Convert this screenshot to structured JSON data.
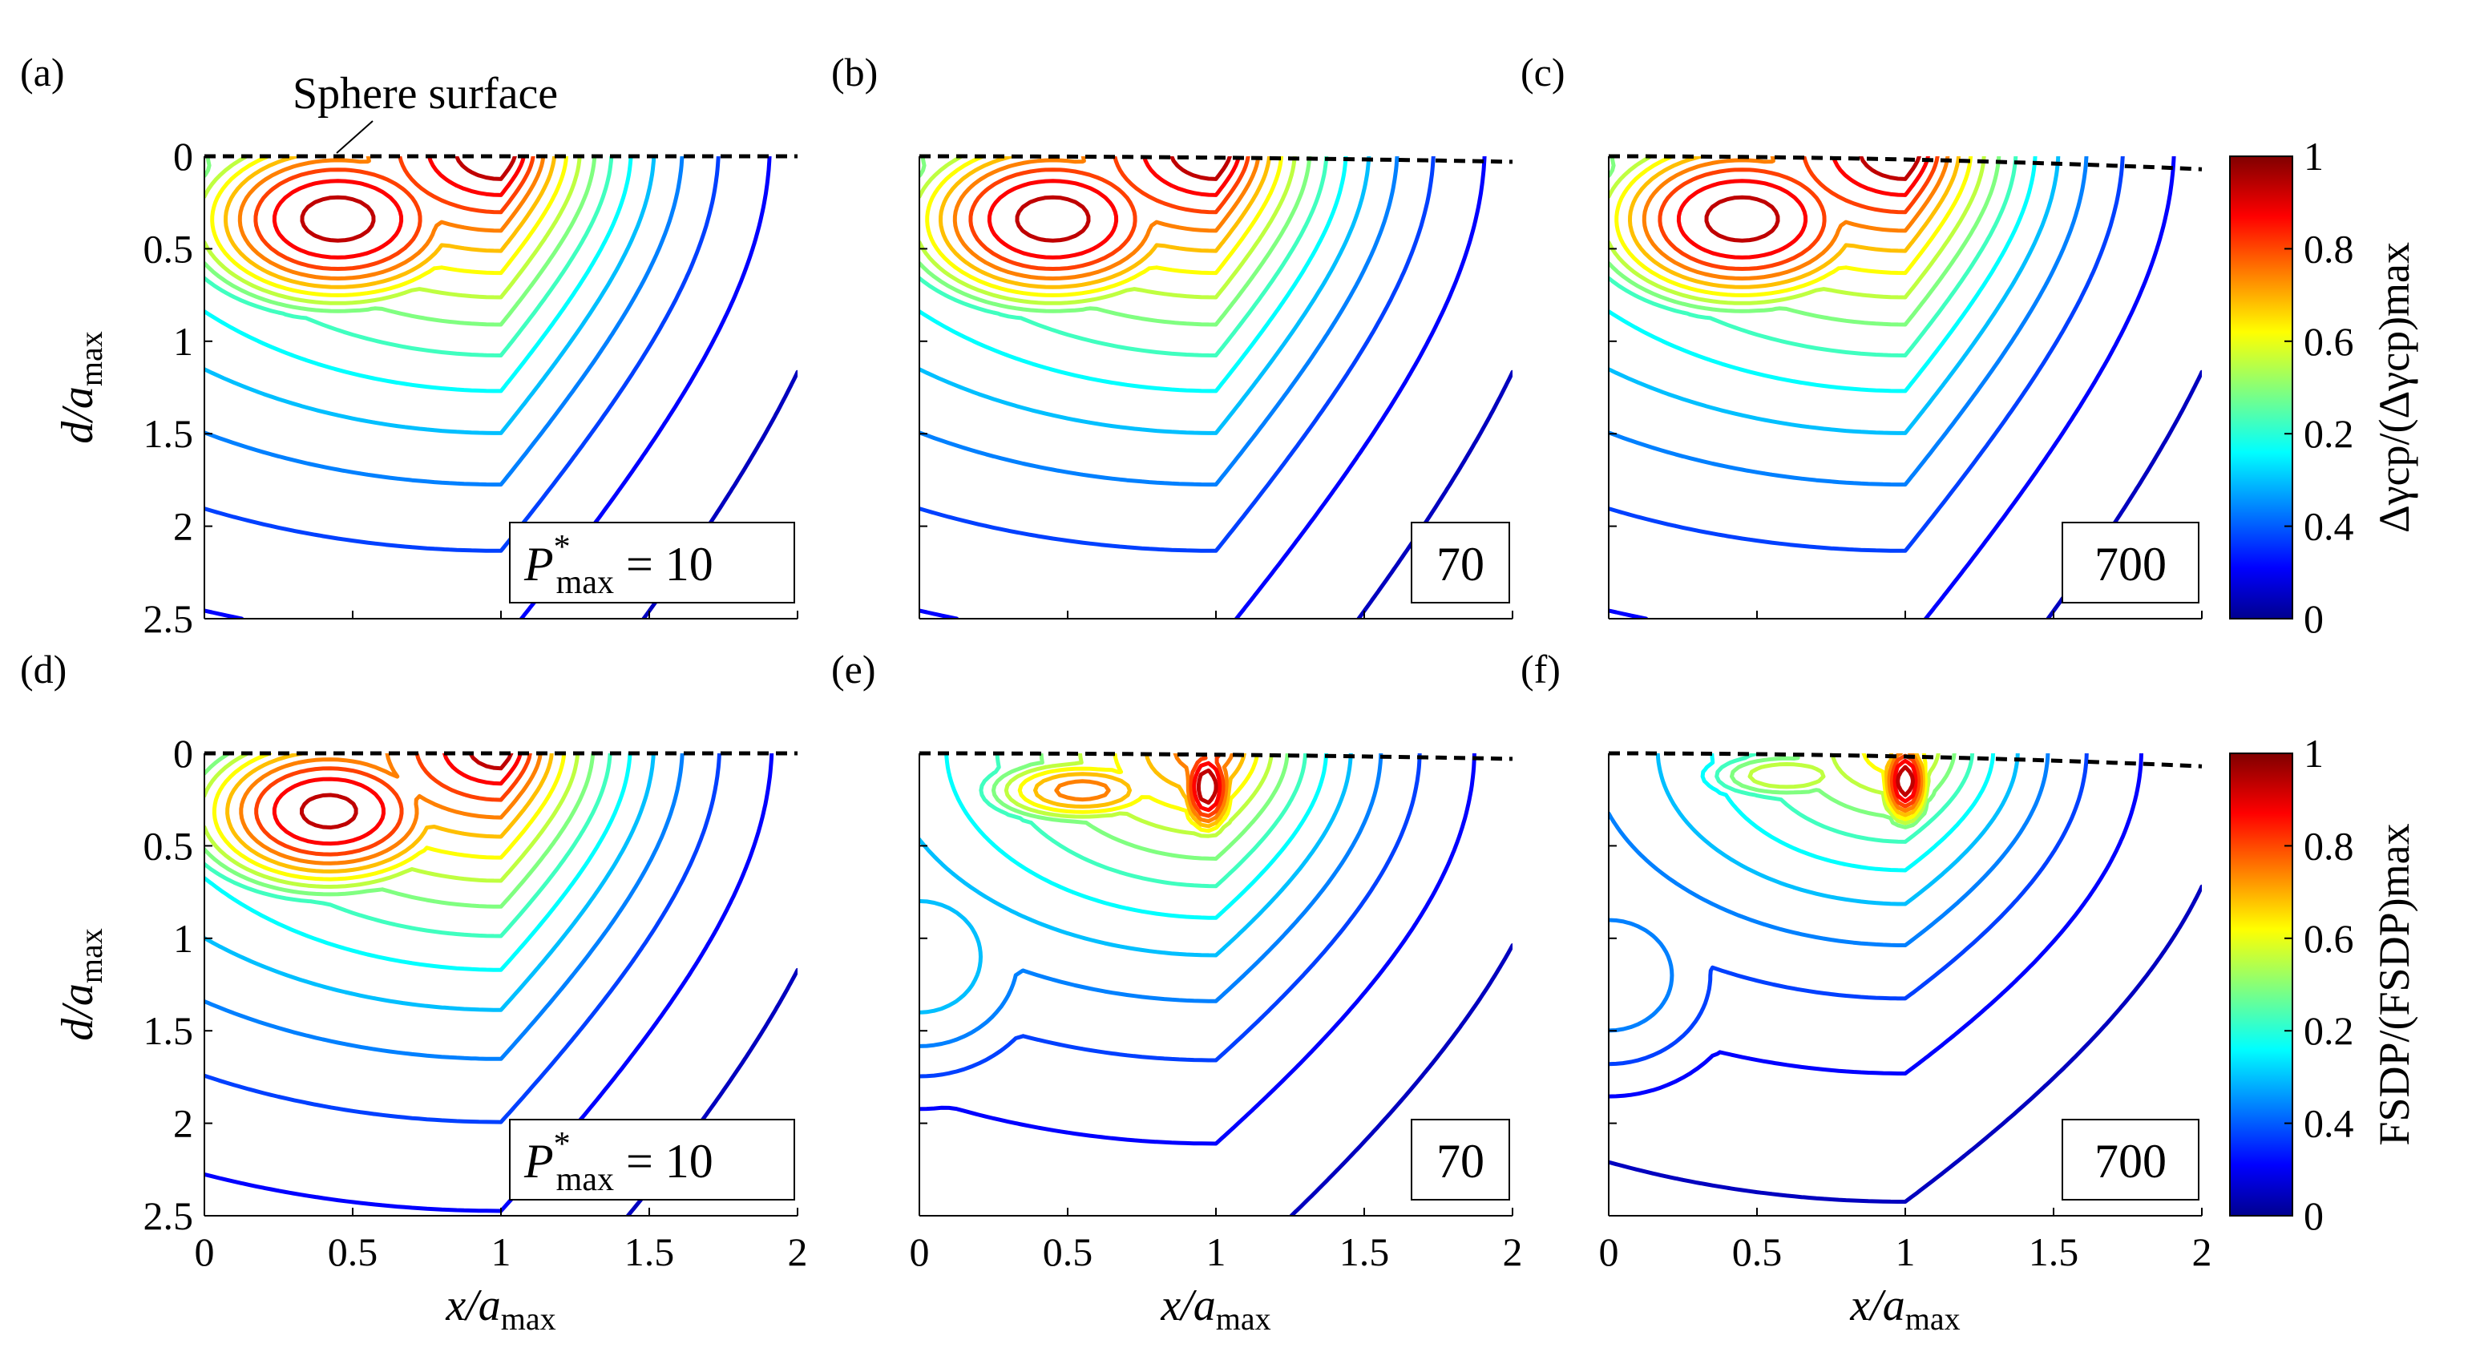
{
  "chart_data": [
    {
      "id": "a",
      "panel_label": "(a)",
      "type": "contour",
      "field": "cp",
      "row": 0,
      "col": 0,
      "box_value": "10",
      "box_prefix": "P",
      "box_sup": "*",
      "box_sub": "max",
      "box_suffix": " = 10",
      "show_prefix": true,
      "annotation": "Sphere surface",
      "xlabel": "",
      "ylabel": "d/a",
      "show_xticks": false,
      "show_yticks": true,
      "levels": 15,
      "surface_sag": 0.0
    },
    {
      "id": "b",
      "panel_label": "(b)",
      "type": "contour",
      "field": "cp",
      "row": 0,
      "col": 1,
      "box_value": "70",
      "show_prefix": false,
      "xlabel": "",
      "ylabel": "",
      "show_xticks": false,
      "show_yticks": false,
      "levels": 15,
      "surface_sag": 0.03
    },
    {
      "id": "c",
      "panel_label": "(c)",
      "type": "contour",
      "field": "cp",
      "row": 0,
      "col": 2,
      "box_value": "700",
      "show_prefix": false,
      "xlabel": "",
      "ylabel": "",
      "show_xticks": false,
      "show_yticks": false,
      "levels": 15,
      "surface_sag": 0.07
    },
    {
      "id": "d",
      "panel_label": "(d)",
      "type": "contour",
      "field": "fsdp",
      "row": 1,
      "col": 0,
      "box_value": "10",
      "box_prefix": "P",
      "box_sup": "*",
      "box_sub": "max",
      "box_suffix": " = 10",
      "show_prefix": true,
      "xlabel": "x/a",
      "ylabel": "d/a",
      "show_xticks": true,
      "show_yticks": true,
      "levels": 15,
      "surface_sag": 0.0
    },
    {
      "id": "e",
      "panel_label": "(e)",
      "type": "contour",
      "field": "fsdp2",
      "row": 1,
      "col": 1,
      "box_value": "70",
      "show_prefix": false,
      "xlabel": "x/a",
      "ylabel": "",
      "show_xticks": true,
      "show_yticks": false,
      "levels": 15,
      "surface_sag": 0.03
    },
    {
      "id": "f",
      "panel_label": "(f)",
      "type": "contour",
      "field": "fsdp3",
      "row": 1,
      "col": 2,
      "box_value": "700",
      "show_prefix": false,
      "xlabel": "x/a",
      "ylabel": "",
      "show_xticks": true,
      "show_yticks": false,
      "levels": 15,
      "surface_sag": 0.07
    }
  ],
  "axes": {
    "x_range": [
      0,
      2
    ],
    "y_range": [
      0,
      2.5
    ],
    "x_ticks": [
      "0",
      "0.5",
      "1",
      "1.5",
      "2"
    ],
    "y_ticks": [
      "0",
      "0.5",
      "1",
      "1.5",
      "2",
      "2.5"
    ],
    "x_label_main": "x/a",
    "x_label_sub": "max",
    "y_label_main": "d/a",
    "y_label_sub": "max"
  },
  "colorbars": [
    {
      "id": "cb1",
      "row": 0,
      "ticks": [
        "1",
        "0.8",
        "0.6",
        "0.2",
        "0.4",
        "0"
      ],
      "label": "Δγcp/(Δγcp)max"
    },
    {
      "id": "cb2",
      "row": 1,
      "ticks": [
        "1",
        "0.8",
        "0.6",
        "0.2",
        "0.4",
        "0"
      ],
      "label": "FSDP/(FSDP)max"
    }
  ],
  "colors": {
    "surface_line": "#000000",
    "frame": "#000000"
  }
}
